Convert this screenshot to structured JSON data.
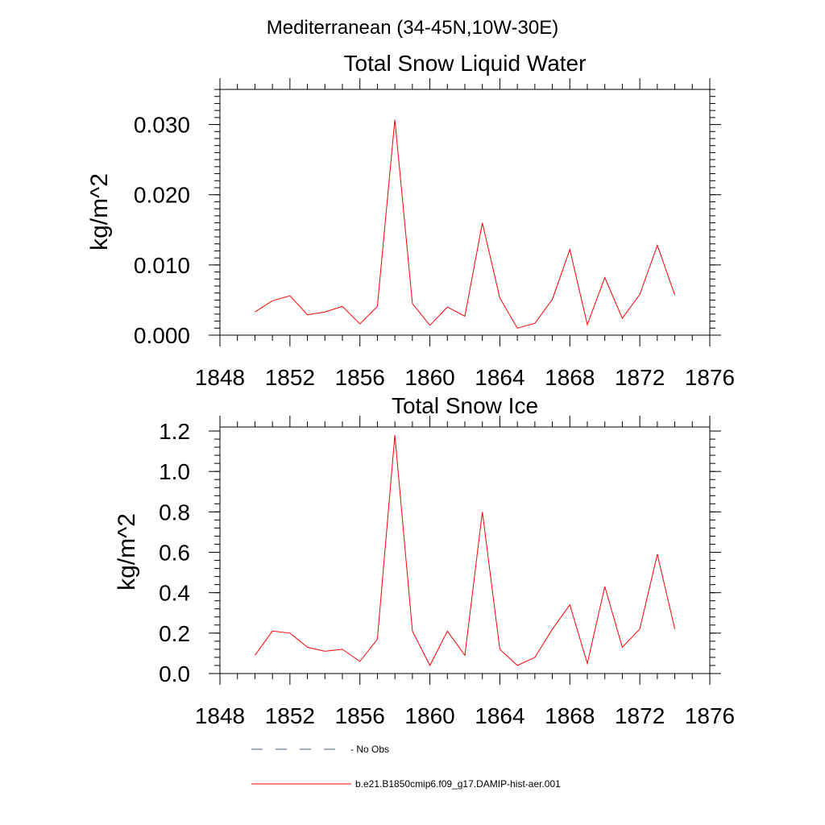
{
  "figure": {
    "title": "Mediterranean (34-45N,10W-30E)"
  },
  "chart_data": [
    {
      "type": "line",
      "title": "Total Snow Liquid Water",
      "ylabel": "kg/m^2",
      "xlabel": "",
      "xlim": [
        1848,
        1876
      ],
      "ylim": [
        0.0,
        0.035
      ],
      "xticks": [
        "1848",
        "1852",
        "1856",
        "1860",
        "1864",
        "1868",
        "1872",
        "1876"
      ],
      "yticks": [
        "0.000",
        "0.010",
        "0.020",
        "0.030"
      ],
      "ytick_values": [
        0.0,
        0.01,
        0.02,
        0.03
      ],
      "grid": false,
      "series": [
        {
          "name": "b.e21.B1850cmip6.f09_g17.DAMIP-hist-aer.001",
          "color": "#ff0000",
          "x": [
            1850,
            1851,
            1852,
            1853,
            1854,
            1855,
            1856,
            1857,
            1858,
            1859,
            1860,
            1861,
            1862,
            1863,
            1864,
            1865,
            1866,
            1867,
            1868,
            1869,
            1870,
            1871,
            1872,
            1873,
            1874
          ],
          "y": [
            0.0033,
            0.0049,
            0.0056,
            0.0029,
            0.0033,
            0.0041,
            0.0016,
            0.0041,
            0.0307,
            0.0045,
            0.0014,
            0.004,
            0.0027,
            0.016,
            0.0053,
            0.001,
            0.0017,
            0.0051,
            0.0122,
            0.0015,
            0.0082,
            0.0024,
            0.0058,
            0.0128,
            0.0057
          ]
        }
      ]
    },
    {
      "type": "line",
      "title": "Total Snow Ice",
      "ylabel": "kg/m^2",
      "xlabel": "",
      "xlim": [
        1848,
        1876
      ],
      "ylim": [
        0.0,
        1.22
      ],
      "xticks": [
        "1848",
        "1852",
        "1856",
        "1860",
        "1864",
        "1868",
        "1872",
        "1876"
      ],
      "yticks": [
        "0.0",
        "0.2",
        "0.4",
        "0.6",
        "0.8",
        "1.0",
        "1.2"
      ],
      "ytick_values": [
        0.0,
        0.2,
        0.4,
        0.6,
        0.8,
        1.0,
        1.2
      ],
      "grid": false,
      "series": [
        {
          "name": "b.e21.B1850cmip6.f09_g17.DAMIP-hist-aer.001",
          "color": "#ff0000",
          "x": [
            1850,
            1851,
            1852,
            1853,
            1854,
            1855,
            1856,
            1857,
            1858,
            1859,
            1860,
            1861,
            1862,
            1863,
            1864,
            1865,
            1866,
            1867,
            1868,
            1869,
            1870,
            1871,
            1872,
            1873,
            1874
          ],
          "y": [
            0.09,
            0.21,
            0.2,
            0.13,
            0.11,
            0.12,
            0.06,
            0.17,
            1.18,
            0.21,
            0.04,
            0.21,
            0.09,
            0.8,
            0.12,
            0.04,
            0.08,
            0.22,
            0.34,
            0.05,
            0.43,
            0.13,
            0.22,
            0.59,
            0.22
          ]
        }
      ]
    }
  ],
  "legend": {
    "position": "bottom",
    "items": [
      {
        "label": "- No Obs",
        "style": "dashed",
        "color": "#4a5a8a"
      },
      {
        "label": "b.e21.B1850cmip6.f09_g17.DAMIP-hist-aer.001",
        "style": "solid",
        "color": "#ff0000"
      }
    ]
  }
}
